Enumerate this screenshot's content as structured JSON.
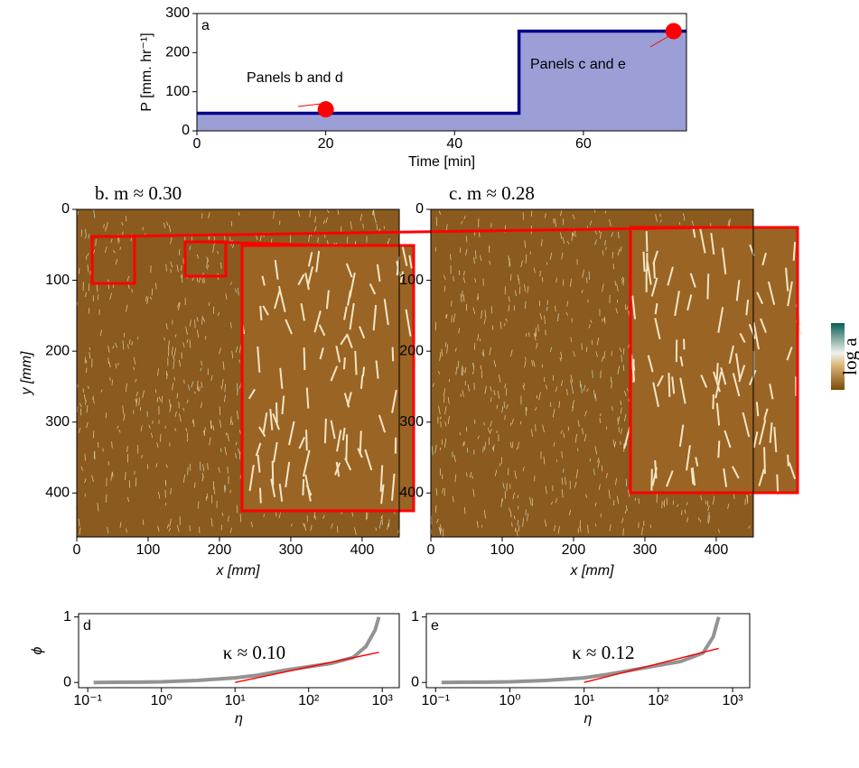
{
  "chart_data": [
    {
      "type": "area",
      "label": "a",
      "x_label": "Time [min]",
      "y_label": "P [mm. hr⁻¹]",
      "xlim": [
        0,
        76
      ],
      "xticks": [
        0,
        20,
        40,
        60
      ],
      "ylim": [
        0,
        300
      ],
      "yticks": [
        0,
        100,
        200,
        300
      ],
      "series": [
        {
          "color": "#00008b",
          "fill_color": "#9b9fd6",
          "x": [
            0,
            50,
            50,
            76
          ],
          "values": [
            45,
            45,
            255,
            255
          ]
        }
      ],
      "points": {
        "color": "#ff0000",
        "x": [
          20,
          74
        ],
        "values": [
          55,
          255
        ]
      },
      "annotations": [
        "Panels b and d",
        "Panels c and e"
      ]
    },
    {
      "type": "image",
      "title": "b. m ≈ 0.30",
      "x_label": "x [mm]",
      "y_label": "y [mm]",
      "xlim": [
        0,
        452
      ],
      "xticks": [
        0,
        100,
        200,
        300,
        400
      ],
      "ylim": [
        0,
        462
      ],
      "yticks": [
        0,
        100,
        200,
        300,
        400
      ],
      "y_inverted": true
    },
    {
      "type": "image",
      "title": "c. m ≈ 0.28",
      "x_label": "x [mm]",
      "xlim": [
        0,
        452
      ],
      "xticks": [
        0,
        100,
        200,
        300,
        400
      ],
      "ylim": [
        0,
        462
      ],
      "yticks": [
        0,
        100,
        200,
        300,
        400
      ],
      "y_inverted": true,
      "colorbar_label": "log a"
    },
    {
      "type": "line",
      "label": "d",
      "x_label": "η",
      "y_label": "ϕ",
      "log_x": true,
      "xlim": [
        0.075,
        1700
      ],
      "xticks": [
        {
          "value": 0.1,
          "label": "10⁻¹"
        },
        {
          "value": 1,
          "label": "10⁰"
        },
        {
          "value": 10,
          "label": "10¹"
        },
        {
          "value": 100,
          "label": "10²"
        },
        {
          "value": 1000,
          "label": "10³"
        }
      ],
      "ylim": [
        -0.08,
        1.05
      ],
      "yticks": [
        0,
        1
      ],
      "series": [
        {
          "color": "#808080",
          "x": [
            0.12,
            0.5,
            1,
            3,
            10,
            20,
            50,
            100,
            200,
            400,
            600,
            800,
            900
          ],
          "values": [
            0,
            0.005,
            0.01,
            0.03,
            0.07,
            0.11,
            0.19,
            0.24,
            0.29,
            0.38,
            0.55,
            0.8,
            1.0
          ]
        },
        {
          "color": "#ff0000",
          "x": [
            10,
            900
          ],
          "values": [
            0,
            0.46
          ]
        }
      ],
      "annotation": "κ ≈ 0.10"
    },
    {
      "type": "line",
      "label": "e",
      "x_label": "η",
      "log_x": true,
      "xlim": [
        0.075,
        1700
      ],
      "xticks": [
        {
          "value": 0.1,
          "label": "10⁻¹"
        },
        {
          "value": 1,
          "label": "10⁰"
        },
        {
          "value": 10,
          "label": "10¹"
        },
        {
          "value": 100,
          "label": "10²"
        },
        {
          "value": 1000,
          "label": "10³"
        }
      ],
      "ylim": [
        -0.08,
        1.05
      ],
      "yticks": [
        0,
        1
      ],
      "series": [
        {
          "color": "#808080",
          "x": [
            0.12,
            0.5,
            1,
            3,
            10,
            20,
            50,
            100,
            200,
            400,
            550,
            650
          ],
          "values": [
            0,
            0.005,
            0.01,
            0.03,
            0.07,
            0.12,
            0.2,
            0.26,
            0.32,
            0.45,
            0.7,
            1.0
          ]
        },
        {
          "color": "#ff0000",
          "x": [
            10,
            650
          ],
          "values": [
            0,
            0.52
          ]
        }
      ],
      "annotation": "κ ≈ 0.12"
    }
  ]
}
